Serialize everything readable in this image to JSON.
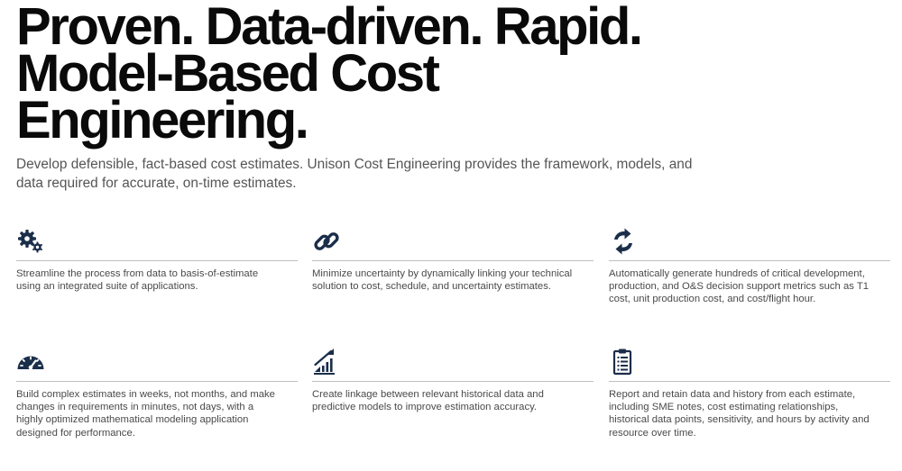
{
  "hero": {
    "title_lines": [
      "Proven. Data-driven. Rapid.",
      "Model-Based Cost",
      "Engineering."
    ],
    "intro": "Develop defensible, fact-based cost estimates. Unison Cost Engineering provides the framework, models, and data required for accurate, on-time estimates."
  },
  "features": [
    {
      "icon": "gears-icon",
      "text": "Streamline the process from data to basis-of-estimate using an integrated suite of applications."
    },
    {
      "icon": "link-icon",
      "text": "Minimize uncertainty by dynamically linking your technical solution to cost, schedule, and uncertainty estimates."
    },
    {
      "icon": "sync-arrows-icon",
      "text": "Automatically generate hundreds of critical development, production, and O&S decision support metrics such as T1 cost, unit production cost, and cost/flight hour."
    },
    {
      "icon": "speedometer-icon",
      "text": "Build complex estimates in weeks, not months, and make changes in requirements in minutes, not days, with a highly optimized mathematical modeling application designed for performance."
    },
    {
      "icon": "growth-chart-icon",
      "text": "Create linkage between relevant historical data and predictive models to improve estimation accuracy."
    },
    {
      "icon": "clipboard-icon",
      "text": "Report and retain data and history from each estimate, including SME notes, cost estimating relationships, historical data points, sensitivity, and hours by activity and resource over time."
    }
  ],
  "colors": {
    "heading": "#0a0a0a",
    "body_text": "#555555",
    "icon": "#1b2e4a",
    "divider": "#bfbfbf"
  }
}
